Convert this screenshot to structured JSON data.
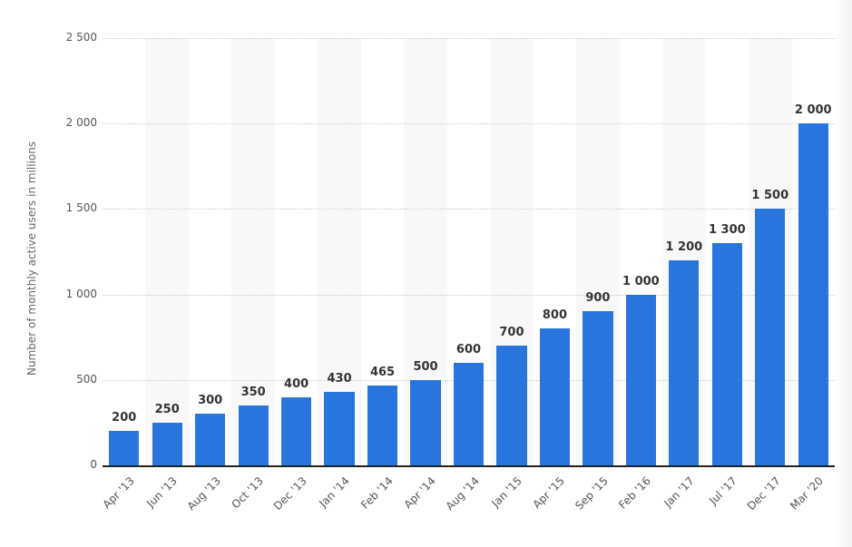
{
  "chart_data": {
    "type": "bar",
    "title": "",
    "xlabel": "",
    "ylabel": "Number of monthly active users in millions",
    "ylim": [
      0,
      2500
    ],
    "yticks": [
      0,
      500,
      1000,
      1500,
      2000,
      2500
    ],
    "ytick_labels": [
      "0",
      "500",
      "1 000",
      "1 500",
      "2 000",
      "2 500"
    ],
    "grid": true,
    "legend": null,
    "categories": [
      "Apr '13",
      "Jun '13",
      "Aug '13",
      "Oct '13",
      "Dec '13",
      "Jan '14",
      "Feb '14",
      "Apr '14",
      "Aug '14",
      "Jan '15",
      "Apr '15",
      "Sep '15",
      "Feb '16",
      "Jan '17",
      "Jul '17",
      "Dec '17",
      "Mar '20"
    ],
    "values": [
      200,
      250,
      300,
      350,
      400,
      430,
      465,
      500,
      600,
      700,
      800,
      900,
      1000,
      1200,
      1300,
      1500,
      2000
    ],
    "value_labels": [
      "200",
      "250",
      "300",
      "350",
      "400",
      "430",
      "465",
      "500",
      "600",
      "700",
      "800",
      "900",
      "1 000",
      "1 200",
      "1 300",
      "1 500",
      "2 000"
    ],
    "bar_color": "#2876dd"
  }
}
